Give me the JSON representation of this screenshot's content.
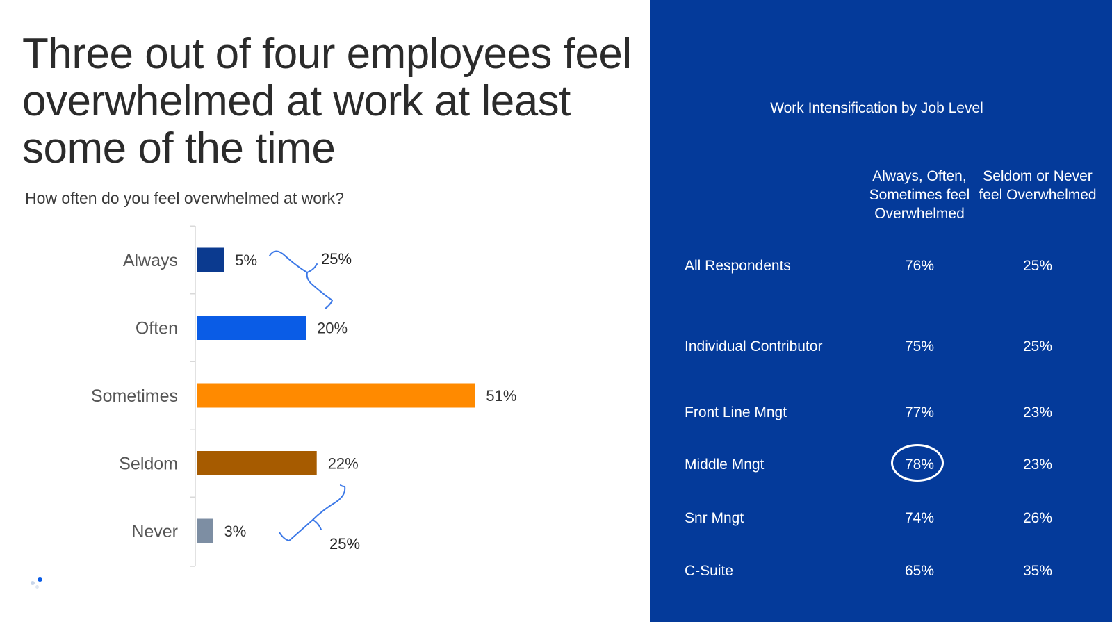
{
  "headline": "Three out of four employees feel overwhelmed at work at least some of the time",
  "question": "How often do you feel overwhelmed at work?",
  "annotations": {
    "top_group": "25%",
    "bottom_group": "25%"
  },
  "chart_data": {
    "type": "bar",
    "orientation": "horizontal",
    "categories": [
      "Always",
      "Often",
      "Sometimes",
      "Seldom",
      "Never"
    ],
    "values": [
      5,
      20,
      51,
      22,
      3
    ],
    "value_labels": [
      "5%",
      "20%",
      "51%",
      "22%",
      "3%"
    ],
    "colors": [
      "#0b3a8f",
      "#0a5ce6",
      "#ff8a00",
      "#a65b00",
      "#7d8ea3"
    ],
    "grid": false,
    "legend": "none"
  },
  "table": {
    "title": "Work Intensification by Job Level",
    "columns": [
      "Always, Often, Sometimes feel Overwhelmed",
      "Seldom or Never feel Overwhelmed"
    ],
    "rows": [
      {
        "label": "All Respondents",
        "v1": "76%",
        "v2": "25%"
      },
      {
        "label": "Individual Contributor",
        "v1": "75%",
        "v2": "25%"
      },
      {
        "label": "Front Line Mngt",
        "v1": "77%",
        "v2": "23%"
      },
      {
        "label": "Middle Mngt",
        "v1": "78%",
        "v2": "23%",
        "highlighted": true
      },
      {
        "label": "Snr Mngt",
        "v1": "74%",
        "v2": "26%"
      },
      {
        "label": "C-Suite",
        "v1": "65%",
        "v2": "35%"
      }
    ]
  },
  "colors": {
    "panel": "#043a9a",
    "annotation_stroke": "#3b78e7"
  }
}
